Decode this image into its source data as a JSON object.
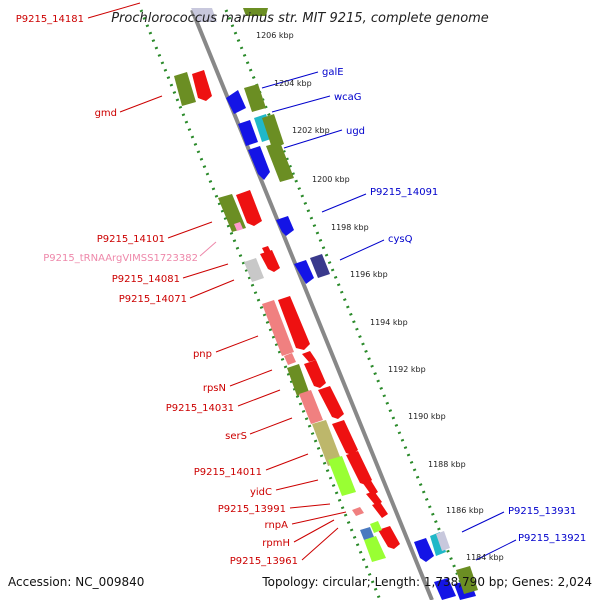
{
  "title": "Prochlorococcus marinus str. MIT 9215, complete genome",
  "footer": {
    "accession": "Accession: NC_009840",
    "summary": "Topology: circular; Length: 1,738,790 bp; Genes: 2,024"
  },
  "scale_labels": [
    "1206 kbp",
    "1204 kbp",
    "1202 kbp",
    "1200 kbp",
    "1198 kbp",
    "1196 kbp",
    "1194 kbp",
    "1192 kbp",
    "1190 kbp",
    "1188 kbp",
    "1186 kbp",
    "1184 kbp"
  ],
  "forward_labels": [
    "galE",
    "wcaG",
    "ugd",
    "P9215_14091",
    "cysQ",
    "P9215_13931",
    "P9215_13921"
  ],
  "reverse_labels": [
    "P9215_14181",
    "gmd",
    "P9215_14101",
    "P9215_tRNAArgVIMSS1723382",
    "P9215_14081",
    "P9215_14071",
    "pnp",
    "rpsN",
    "P9215_14031",
    "serS",
    "P9215_14011",
    "yidC",
    "P9215_13991",
    "rnpA",
    "rpmH",
    "P9215_13961"
  ],
  "colors": {
    "forward_label": "#0000cc",
    "reverse_label": "#cc0000",
    "rna_label": "#ee88aa",
    "backbone": "#888888",
    "scale_dots": "#2a8a2a",
    "gene_blue": "#1414e6",
    "gene_navy": "#3a3a8c",
    "gene_cyan": "#20b8c8",
    "gene_olive": "#6b8e23",
    "gene_red": "#ee1111",
    "gene_salmon": "#f08080",
    "gene_khaki": "#bdb76b",
    "gene_lime": "#99ff33",
    "gene_grey": "#c8c8c8",
    "gene_pink": "#ff99cc"
  }
}
